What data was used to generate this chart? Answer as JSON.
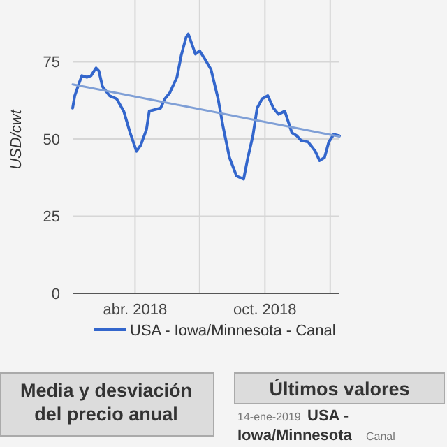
{
  "chart_data": {
    "type": "line",
    "ylabel": "USD/cwt",
    "x": [
      "2018-01-03",
      "2018-01-06",
      "2018-01-12",
      "2018-01-16",
      "2018-01-23",
      "2018-01-29",
      "2018-02-05",
      "2018-02-09",
      "2018-02-14",
      "2018-02-24",
      "2018-03-06",
      "2018-03-16",
      "2018-03-25",
      "2018-04-03",
      "2018-04-09",
      "2018-04-17",
      "2018-04-21",
      "2018-05-07",
      "2018-05-13",
      "2018-05-20",
      "2018-05-30",
      "2018-06-05",
      "2018-06-12",
      "2018-06-15",
      "2018-06-25",
      "2018-07-01",
      "2018-07-08",
      "2018-07-17",
      "2018-07-27",
      "2018-08-03",
      "2018-08-12",
      "2018-08-22",
      "2018-09-01",
      "2018-09-07",
      "2018-09-14",
      "2018-09-20",
      "2018-09-27",
      "2018-10-05",
      "2018-10-13",
      "2018-10-20",
      "2018-10-29",
      "2018-11-08",
      "2018-11-15",
      "2018-11-21",
      "2018-12-01",
      "2018-12-11",
      "2018-12-17",
      "2018-12-24",
      "2018-12-30",
      "2019-01-06",
      "2019-01-14"
    ],
    "series": [
      {
        "name": "USA - Iowa/Minnesota - Canal",
        "color": "#3366cc",
        "values": [
          60,
          64,
          68,
          70.5,
          70,
          70.5,
          73,
          72,
          67,
          64,
          63,
          59,
          52,
          46,
          48,
          53,
          59,
          60,
          63,
          65,
          70,
          77,
          83,
          84,
          77.5,
          78.5,
          76,
          72.5,
          63,
          54,
          44,
          38,
          37,
          44,
          51,
          60,
          63,
          64,
          60,
          58,
          59,
          52,
          51,
          49.5,
          49,
          46,
          43,
          44,
          49,
          51.5,
          51
        ]
      },
      {
        "type": "line",
        "color": "#7f9fd6",
        "x": [
          "2018-01-03",
          "2019-01-14"
        ],
        "values": [
          67.7,
          50.8
        ]
      }
    ],
    "xlim": [
      "2018-01-03",
      "2019-01-14"
    ],
    "xticks": [
      {
        "value": "2018-04-01",
        "label": "abr. 2018"
      },
      {
        "value": "2018-07-01",
        "label": null
      },
      {
        "value": "2018-10-01",
        "label": "oct. 2018"
      },
      {
        "value": "2019-01-01",
        "label": null
      }
    ],
    "ylim": [
      0,
      95
    ],
    "yticks": [
      0,
      25,
      50,
      75
    ],
    "grid": true,
    "legend": "bottom",
    "annotations": [
      "Media y desviación del precio anual",
      "Últimos valores",
      "14-ene-2019",
      "USA - Iowa/Minnesota",
      "Canal"
    ]
  }
}
